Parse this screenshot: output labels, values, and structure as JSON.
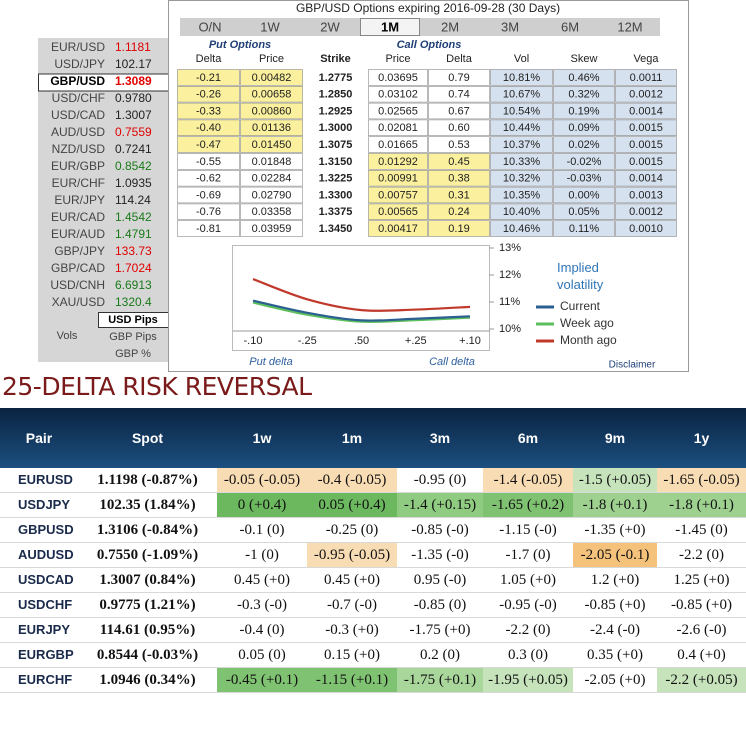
{
  "header": {
    "title": "GBP/USD Options expiring 2016-09-28 (30 Days)"
  },
  "tabs": {
    "items": [
      "O/N",
      "1W",
      "2W",
      "1M",
      "2M",
      "3M",
      "6M",
      "12M"
    ],
    "active": 3
  },
  "left_panel": {
    "pairs": [
      {
        "name": "EUR/USD",
        "price": "1.1181",
        "color": "#e00000"
      },
      {
        "name": "USD/JPY",
        "price": "102.17",
        "color": "#222222"
      },
      {
        "name": "GBP/USD",
        "price": "1.3089",
        "color": "#e00000"
      },
      {
        "name": "USD/CHF",
        "price": "0.9780",
        "color": "#222222"
      },
      {
        "name": "USD/CAD",
        "price": "1.3007",
        "color": "#222222"
      },
      {
        "name": "AUD/USD",
        "price": "0.7559",
        "color": "#e00000"
      },
      {
        "name": "NZD/USD",
        "price": "0.7241",
        "color": "#222222"
      },
      {
        "name": "EUR/GBP",
        "price": "0.8542",
        "color": "#1a7a1a"
      },
      {
        "name": "EUR/CHF",
        "price": "1.0935",
        "color": "#222222"
      },
      {
        "name": "EUR/JPY",
        "price": "114.24",
        "color": "#222222"
      },
      {
        "name": "EUR/CAD",
        "price": "1.4542",
        "color": "#1a7a1a"
      },
      {
        "name": "EUR/AUD",
        "price": "1.4791",
        "color": "#1a7a1a"
      },
      {
        "name": "GBP/JPY",
        "price": "133.73",
        "color": "#e00000"
      },
      {
        "name": "GBP/CAD",
        "price": "1.7024",
        "color": "#e00000"
      },
      {
        "name": "USD/CNH",
        "price": "6.6913",
        "color": "#1a7a1a"
      },
      {
        "name": "XAU/USD",
        "price": "1320.4",
        "color": "#1a7a1a"
      }
    ],
    "selected": 2,
    "unit_label": "Vols",
    "unit_options": [
      "USD Pips",
      "GBP Pips",
      "GBP %"
    ],
    "selected_unit": 0
  },
  "options_table": {
    "put_label": "Put Options",
    "call_label": "Call Options",
    "columns": [
      "Delta",
      "Price",
      "Strike",
      "Price",
      "Delta",
      "Vol",
      "Skew",
      "Vega"
    ],
    "rows": [
      [
        "-0.21",
        "0.00482",
        "1.2775",
        "0.03695",
        "0.79",
        "10.81%",
        "0.46%",
        "0.0011"
      ],
      [
        "-0.26",
        "0.00658",
        "1.2850",
        "0.03102",
        "0.74",
        "10.67%",
        "0.32%",
        "0.0012"
      ],
      [
        "-0.33",
        "0.00860",
        "1.2925",
        "0.02565",
        "0.67",
        "10.54%",
        "0.19%",
        "0.0014"
      ],
      [
        "-0.40",
        "0.01136",
        "1.3000",
        "0.02081",
        "0.60",
        "10.44%",
        "0.09%",
        "0.0015"
      ],
      [
        "-0.47",
        "0.01450",
        "1.3075",
        "0.01665",
        "0.53",
        "10.37%",
        "0.02%",
        "0.0015"
      ],
      [
        "-0.55",
        "0.01848",
        "1.3150",
        "0.01292",
        "0.45",
        "10.33%",
        "-0.02%",
        "0.0015"
      ],
      [
        "-0.62",
        "0.02284",
        "1.3225",
        "0.00991",
        "0.38",
        "10.32%",
        "-0.03%",
        "0.0014"
      ],
      [
        "-0.69",
        "0.02790",
        "1.3300",
        "0.00757",
        "0.31",
        "10.35%",
        "0.00%",
        "0.0013"
      ],
      [
        "-0.76",
        "0.03358",
        "1.3375",
        "0.00565",
        "0.24",
        "10.40%",
        "0.05%",
        "0.0012"
      ],
      [
        "-0.81",
        "0.03959",
        "1.3450",
        "0.00417",
        "0.19",
        "10.46%",
        "0.11%",
        "0.0010"
      ]
    ],
    "put_highlight": [
      0,
      1,
      2,
      3,
      4
    ],
    "call_highlight": [
      5,
      6,
      7,
      8,
      9
    ],
    "highlight_color": "#faf09e",
    "vol_color": "#d6e1ef"
  },
  "chart_data": {
    "type": "line",
    "legend_title": "Implied volatility",
    "categories": [
      "-.10",
      "-.25",
      ".50",
      "+.25",
      "+.10"
    ],
    "series": [
      {
        "name": "Current",
        "color": "#2b5f91",
        "values": [
          11.05,
          10.6,
          10.32,
          10.38,
          10.47
        ]
      },
      {
        "name": "Week ago",
        "color": "#5cbf5c",
        "values": [
          10.98,
          10.53,
          10.27,
          10.33,
          10.42
        ]
      },
      {
        "name": "Month ago",
        "color": "#c0392b",
        "values": [
          11.85,
          11.1,
          10.7,
          10.72,
          10.82
        ]
      }
    ],
    "ylim": [
      10,
      13
    ],
    "yticks": [
      {
        "value": 10,
        "label": "10%"
      },
      {
        "value": 11,
        "label": "11%"
      },
      {
        "value": 12,
        "label": "12%"
      },
      {
        "value": 13,
        "label": "13%"
      }
    ],
    "annotations": [
      "Put delta",
      "Call delta"
    ],
    "disclaimer": "Disclaimer"
  },
  "risk_reversal": {
    "title": "25-DELTA RISK REVERSAL",
    "columns": [
      "Pair",
      "Spot",
      "1w",
      "1m",
      "3m",
      "6m",
      "9m",
      "1y"
    ],
    "rows": [
      {
        "pair": "EURUSD",
        "spot": "1.1198 (-0.87%)",
        "cells": [
          {
            "text": "-0.05 (-0.05)",
            "color": "#f8dcb4"
          },
          {
            "text": "-0.4 (-0.05)",
            "color": "#f8dcb4"
          },
          {
            "text": "-0.95 (0)",
            "color": "#ffffff"
          },
          {
            "text": "-1.4 (-0.05)",
            "color": "#f8dcb4"
          },
          {
            "text": "-1.5 (+0.05)",
            "color": "#c6e3bc"
          },
          {
            "text": "-1.65 (-0.05)",
            "color": "#f8dcb4"
          }
        ]
      },
      {
        "pair": "USDJPY",
        "spot": "102.35 (1.84%)",
        "cells": [
          {
            "text": "0 (+0.4)",
            "color": "#6cb85f"
          },
          {
            "text": "0.05 (+0.4)",
            "color": "#6cb85f"
          },
          {
            "text": "-1.4 (+0.15)",
            "color": "#8fcb80"
          },
          {
            "text": "-1.65 (+0.2)",
            "color": "#7fc271"
          },
          {
            "text": "-1.8 (+0.1)",
            "color": "#9ed190"
          },
          {
            "text": "-1.8 (+0.1)",
            "color": "#9ed190"
          }
        ]
      },
      {
        "pair": "GBPUSD",
        "spot": "1.3106 (-0.84%)",
        "cells": [
          {
            "text": "-0.1 (0)",
            "color": "#ffffff"
          },
          {
            "text": "-0.25 (0)",
            "color": "#ffffff"
          },
          {
            "text": "-0.85 (-0)",
            "color": "#ffffff"
          },
          {
            "text": "-1.15 (-0)",
            "color": "#ffffff"
          },
          {
            "text": "-1.35 (+0)",
            "color": "#ffffff"
          },
          {
            "text": "-1.45 (0)",
            "color": "#ffffff"
          }
        ]
      },
      {
        "pair": "AUDUSD",
        "spot": "0.7550 (-1.09%)",
        "cells": [
          {
            "text": "-1 (0)",
            "color": "#ffffff"
          },
          {
            "text": "-0.95 (-0.05)",
            "color": "#f8dcb4"
          },
          {
            "text": "-1.35 (-0)",
            "color": "#ffffff"
          },
          {
            "text": "-1.7 (0)",
            "color": "#ffffff"
          },
          {
            "text": "-2.05 (-0.1)",
            "color": "#f5c27c"
          },
          {
            "text": "-2.2 (0)",
            "color": "#ffffff"
          }
        ]
      },
      {
        "pair": "USDCAD",
        "spot": "1.3007 (0.84%)",
        "cells": [
          {
            "text": "0.45 (+0)",
            "color": "#ffffff"
          },
          {
            "text": "0.45 (+0)",
            "color": "#ffffff"
          },
          {
            "text": "0.95 (-0)",
            "color": "#ffffff"
          },
          {
            "text": "1.05 (+0)",
            "color": "#ffffff"
          },
          {
            "text": "1.2 (+0)",
            "color": "#ffffff"
          },
          {
            "text": "1.25 (+0)",
            "color": "#ffffff"
          }
        ]
      },
      {
        "pair": "USDCHF",
        "spot": "0.9775 (1.21%)",
        "cells": [
          {
            "text": "-0.3 (-0)",
            "color": "#ffffff"
          },
          {
            "text": "-0.7 (-0)",
            "color": "#ffffff"
          },
          {
            "text": "-0.85 (0)",
            "color": "#ffffff"
          },
          {
            "text": "-0.95 (-0)",
            "color": "#ffffff"
          },
          {
            "text": "-0.85 (+0)",
            "color": "#ffffff"
          },
          {
            "text": "-0.85 (+0)",
            "color": "#ffffff"
          }
        ]
      },
      {
        "pair": "EURJPY",
        "spot": "114.61 (0.95%)",
        "cells": [
          {
            "text": "-0.4 (0)",
            "color": "#ffffff"
          },
          {
            "text": "-0.3 (+0)",
            "color": "#ffffff"
          },
          {
            "text": "-1.75 (+0)",
            "color": "#ffffff"
          },
          {
            "text": "-2.2 (0)",
            "color": "#ffffff"
          },
          {
            "text": "-2.4 (-0)",
            "color": "#ffffff"
          },
          {
            "text": "-2.6 (-0)",
            "color": "#ffffff"
          }
        ]
      },
      {
        "pair": "EURGBP",
        "spot": "0.8544 (-0.03%)",
        "cells": [
          {
            "text": "0.05 (0)",
            "color": "#ffffff"
          },
          {
            "text": "0.15 (+0)",
            "color": "#ffffff"
          },
          {
            "text": "0.2 (0)",
            "color": "#ffffff"
          },
          {
            "text": "0.3 (0)",
            "color": "#ffffff"
          },
          {
            "text": "0.35 (+0)",
            "color": "#ffffff"
          },
          {
            "text": "0.4 (+0)",
            "color": "#ffffff"
          }
        ]
      },
      {
        "pair": "EURCHF",
        "spot": "1.0946 (0.34%)",
        "cells": [
          {
            "text": "-0.45 (+0.1)",
            "color": "#7fc271"
          },
          {
            "text": "-1.15 (+0.1)",
            "color": "#7fc271"
          },
          {
            "text": "-1.75 (+0.1)",
            "color": "#a8d69b"
          },
          {
            "text": "-1.95 (+0.05)",
            "color": "#c6e3bc"
          },
          {
            "text": "-2.05 (+0)",
            "color": "#ffffff"
          },
          {
            "text": "-2.2 (+0.05)",
            "color": "#c6e3bc"
          }
        ]
      }
    ]
  }
}
